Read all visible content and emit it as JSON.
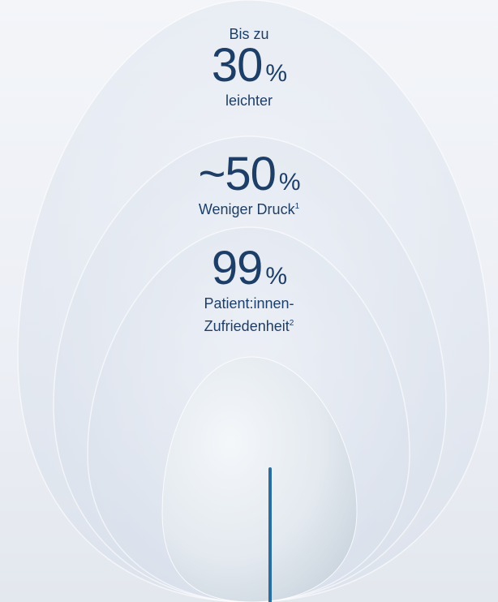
{
  "stats": [
    {
      "prefix_text": "Bis zu",
      "number": "30",
      "percent_sign": "%",
      "caption": "leichter",
      "footnote": ""
    },
    {
      "prefix_text": "",
      "number": "~50",
      "percent_sign": "%",
      "caption": "Weniger Druck",
      "footnote": "1"
    },
    {
      "prefix_text": "",
      "number": "99",
      "percent_sign": "%",
      "caption_line1": "Patient:innen-",
      "caption_line2": "Zufriedenheit",
      "footnote": "2"
    }
  ],
  "colors": {
    "text": "#1d3e66",
    "accent_line": "#2b6d9d",
    "sky": "#e9edf3",
    "egg": "#e6ecf2"
  },
  "icon_names": [
    "product-egg-icon"
  ]
}
